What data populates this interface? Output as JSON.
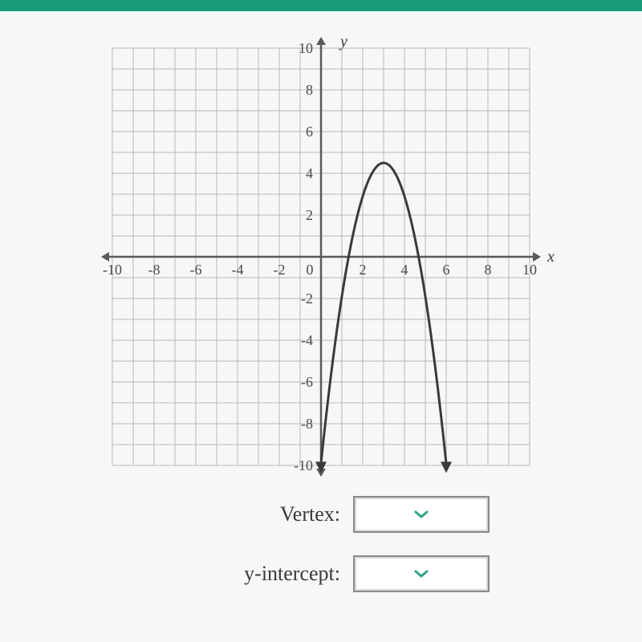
{
  "top_bar_color": "#1a9b7a",
  "graph": {
    "type": "scatter",
    "xlim": [
      -10,
      10
    ],
    "ylim": [
      -10,
      10
    ],
    "grid_step": 1,
    "tick_step": 2,
    "background_color": "#ffffff",
    "grid_color": "#b8b8b8",
    "axis_color": "#5a5a5a",
    "axis_width": 2.5,
    "tick_fontsize": 18,
    "tick_color": "#4a4a4a",
    "x_axis_label": "x",
    "y_axis_label": "y",
    "axis_label_fontsize": 20,
    "parabola": {
      "vertex": [
        3,
        4.5
      ],
      "a": -1.6,
      "color": "#3a3a3a",
      "width": 3,
      "x_start": 0,
      "x_end": 6
    }
  },
  "form": {
    "vertex_label": "Vertex:",
    "yint_label": "y-intercept:",
    "label_fontsize": 26,
    "dropdown_border": "#8a8a8a",
    "chevron_color": "#2fa58b",
    "vertex_value": "",
    "yint_value": ""
  }
}
